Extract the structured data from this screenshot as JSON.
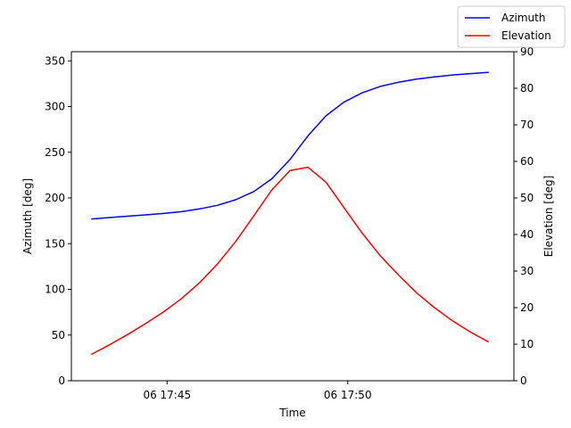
{
  "chart_data": {
    "type": "line",
    "title": "",
    "xlabel": "Time",
    "ylabel_left": "Azimuth [deg]",
    "ylabel_right": "Elevation [deg]",
    "x_ticks": [
      {
        "label": "06 17:45",
        "minute": 45
      },
      {
        "label": "06 17:50",
        "minute": 50
      }
    ],
    "xlim_minutes": [
      42.35,
      54.6
    ],
    "ylim_left": [
      0,
      360
    ],
    "ylim_right": [
      0,
      90
    ],
    "yticks_left": [
      0,
      50,
      100,
      150,
      200,
      250,
      300,
      350
    ],
    "yticks_right": [
      0,
      10,
      20,
      30,
      40,
      50,
      60,
      70,
      80,
      90
    ],
    "grid": false,
    "legend_placement": "top-right",
    "series": [
      {
        "name": "Azimuth",
        "axis": "left",
        "color": "#0000ff",
        "points": [
          [
            42.9,
            177
          ],
          [
            43.4,
            178.5
          ],
          [
            43.9,
            180
          ],
          [
            44.4,
            181.5
          ],
          [
            44.9,
            183
          ],
          [
            45.4,
            185
          ],
          [
            45.9,
            188
          ],
          [
            46.4,
            192
          ],
          [
            46.9,
            198
          ],
          [
            47.4,
            207
          ],
          [
            47.9,
            221
          ],
          [
            48.4,
            242
          ],
          [
            48.9,
            268
          ],
          [
            49.4,
            290
          ],
          [
            49.9,
            305
          ],
          [
            50.4,
            315
          ],
          [
            50.9,
            322
          ],
          [
            51.4,
            326.5
          ],
          [
            51.9,
            330
          ],
          [
            52.4,
            332.5
          ],
          [
            52.9,
            334.5
          ],
          [
            53.4,
            336
          ],
          [
            53.9,
            337.5
          ]
        ]
      },
      {
        "name": "Elevation",
        "axis": "right",
        "color": "#ff0000",
        "points": [
          [
            42.9,
            7.2
          ],
          [
            43.4,
            9.8
          ],
          [
            43.9,
            12.6
          ],
          [
            44.4,
            15.6
          ],
          [
            44.9,
            18.8
          ],
          [
            45.4,
            22.5
          ],
          [
            45.9,
            26.8
          ],
          [
            46.4,
            32.0
          ],
          [
            46.9,
            38.1
          ],
          [
            47.4,
            45.1
          ],
          [
            47.9,
            52.2
          ],
          [
            48.4,
            57.5
          ],
          [
            48.9,
            58.4
          ],
          [
            49.4,
            54.3
          ],
          [
            49.9,
            47.3
          ],
          [
            50.4,
            40.4
          ],
          [
            50.9,
            34.2
          ],
          [
            51.4,
            29.0
          ],
          [
            51.9,
            24.1
          ],
          [
            52.4,
            20.0
          ],
          [
            52.9,
            16.4
          ],
          [
            53.4,
            13.3
          ],
          [
            53.9,
            10.6
          ]
        ]
      }
    ]
  }
}
